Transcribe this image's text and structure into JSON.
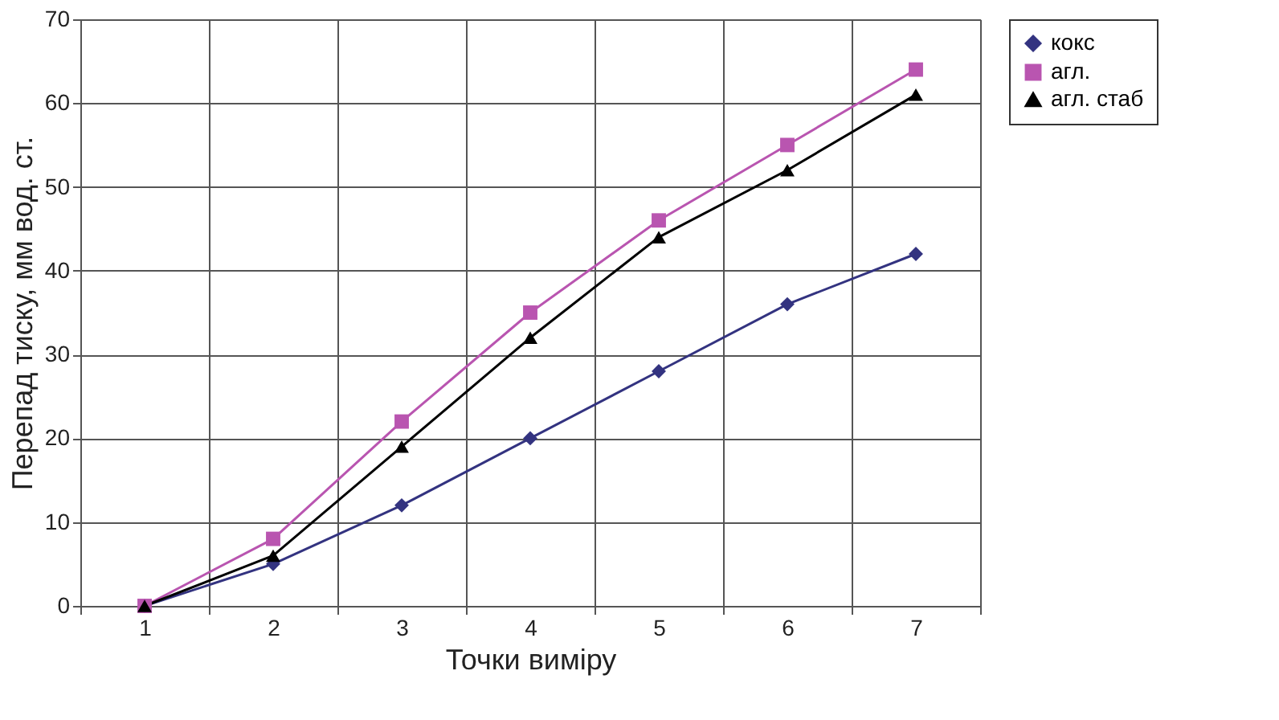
{
  "chart_data": {
    "type": "line",
    "xlabel": "Точки виміру",
    "ylabel": "Перепад тиску, мм вод. ст.",
    "categories": [
      "1",
      "2",
      "3",
      "4",
      "5",
      "6",
      "7"
    ],
    "series": [
      {
        "name": "кокс",
        "color": "#333380",
        "marker": "diamond",
        "values": [
          0,
          5,
          12,
          20,
          28,
          36,
          42
        ]
      },
      {
        "name": "агл.",
        "color": "#b955b0",
        "marker": "square",
        "values": [
          0,
          8,
          22,
          35,
          46,
          55,
          64
        ]
      },
      {
        "name": "агл. стаб",
        "color": "#000000",
        "marker": "triangle",
        "values": [
          0,
          6,
          19,
          32,
          44,
          52,
          61
        ]
      }
    ],
    "ylim": [
      0,
      70
    ],
    "yticks": [
      0,
      10,
      20,
      30,
      40,
      50,
      60,
      70
    ],
    "grid": true,
    "legend": "right",
    "line_style": "solid"
  }
}
